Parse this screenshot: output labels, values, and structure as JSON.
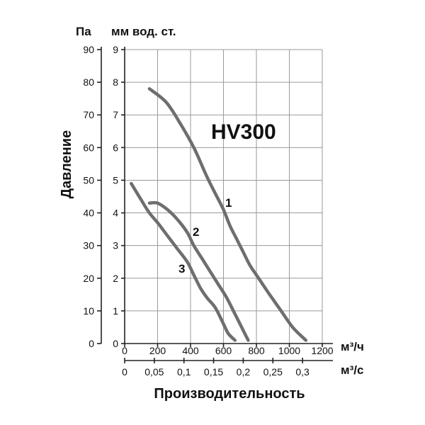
{
  "chart_data": {
    "type": "line",
    "title": "HV300",
    "ylabel": "Давление",
    "xlabel": "Производительность",
    "left_axis_unit": "Па",
    "right_axis_unit": "мм вод. ст.",
    "x_unit_top": "м³/ч",
    "x_unit_bottom": "м³/с",
    "x_ticks_m3h": [
      "0",
      "200",
      "400",
      "600",
      "800",
      "1000",
      "1200"
    ],
    "x_ticks_m3s": [
      "0",
      "0,05",
      "0,1",
      "0,15",
      "0,2",
      "0,25",
      "0,3"
    ],
    "y_ticks_pa": [
      "0",
      "10",
      "20",
      "30",
      "40",
      "50",
      "60",
      "70",
      "80",
      "90"
    ],
    "y_ticks_mm": [
      "0",
      "1",
      "2",
      "3",
      "4",
      "5",
      "6",
      "7",
      "8",
      "9"
    ],
    "xlim": [
      0,
      1200
    ],
    "ylim": [
      0,
      9
    ],
    "grid": true,
    "series": [
      {
        "name": "1",
        "x": [
          150,
          250,
          330,
          420,
          500,
          560,
          600,
          640,
          680,
          720,
          760,
          800,
          840,
          880,
          950,
          1020,
          1100
        ],
        "y": [
          7.8,
          7.4,
          6.8,
          6.0,
          5.1,
          4.5,
          4.1,
          3.6,
          3.2,
          2.8,
          2.4,
          2.1,
          1.8,
          1.5,
          1.0,
          0.5,
          0.1
        ]
      },
      {
        "name": "2",
        "x": [
          150,
          200,
          260,
          320,
          380,
          420,
          470,
          520,
          570,
          620,
          670,
          710,
          750
        ],
        "y": [
          4.3,
          4.3,
          4.1,
          3.8,
          3.4,
          3.0,
          2.6,
          2.2,
          1.8,
          1.4,
          0.9,
          0.5,
          0.1
        ]
      },
      {
        "name": "3",
        "x": [
          40,
          100,
          150,
          200,
          260,
          320,
          380,
          420,
          460,
          500,
          550,
          600,
          630,
          670
        ],
        "y": [
          4.9,
          4.4,
          4.0,
          3.7,
          3.3,
          2.9,
          2.5,
          2.1,
          1.7,
          1.4,
          1.1,
          0.6,
          0.3,
          0.1
        ]
      }
    ]
  }
}
